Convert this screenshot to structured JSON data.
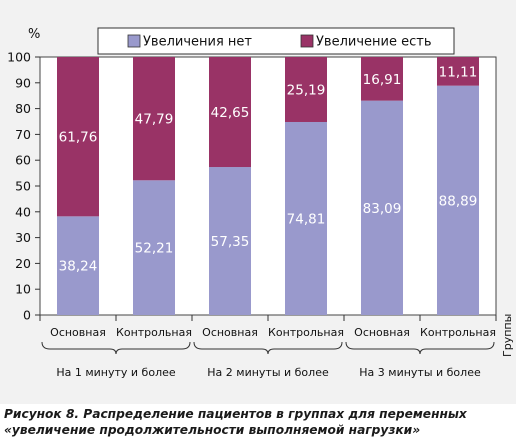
{
  "chart_data": {
    "type": "bar",
    "stacked": true,
    "y_unit_label": "%",
    "ylim": [
      0,
      100
    ],
    "yticks": [
      0,
      10,
      20,
      30,
      40,
      50,
      60,
      70,
      80,
      90,
      100
    ],
    "categories": [
      "Основная",
      "Контрольная",
      "Основная",
      "Контрольная",
      "Основная",
      "Контрольная"
    ],
    "groups": [
      "На 1 минуту и более",
      "На 2 минуты и более",
      "На 3 минуты и более"
    ],
    "x_axis_label": "Группы",
    "series": [
      {
        "name": "Увеличения нет",
        "color": "#9999cc",
        "values": [
          38.24,
          52.21,
          57.35,
          74.81,
          83.09,
          88.89
        ],
        "labels": [
          "38,24",
          "52,21",
          "57,35",
          "74,81",
          "83,09",
          "88,89"
        ]
      },
      {
        "name": "Увеличение есть",
        "color": "#993366",
        "values": [
          61.76,
          47.79,
          42.65,
          25.19,
          16.91,
          11.11
        ],
        "labels": [
          "61,76",
          "47,79",
          "42,65",
          "25,19",
          "16,91",
          "11,11"
        ]
      }
    ],
    "grid": false,
    "legend_position": "top"
  },
  "caption": {
    "prefix": "Рисунок 8.",
    "text": " Распределение пациентов в группах для переменных «увеличение продолжительности выполняемой нагрузки»"
  }
}
